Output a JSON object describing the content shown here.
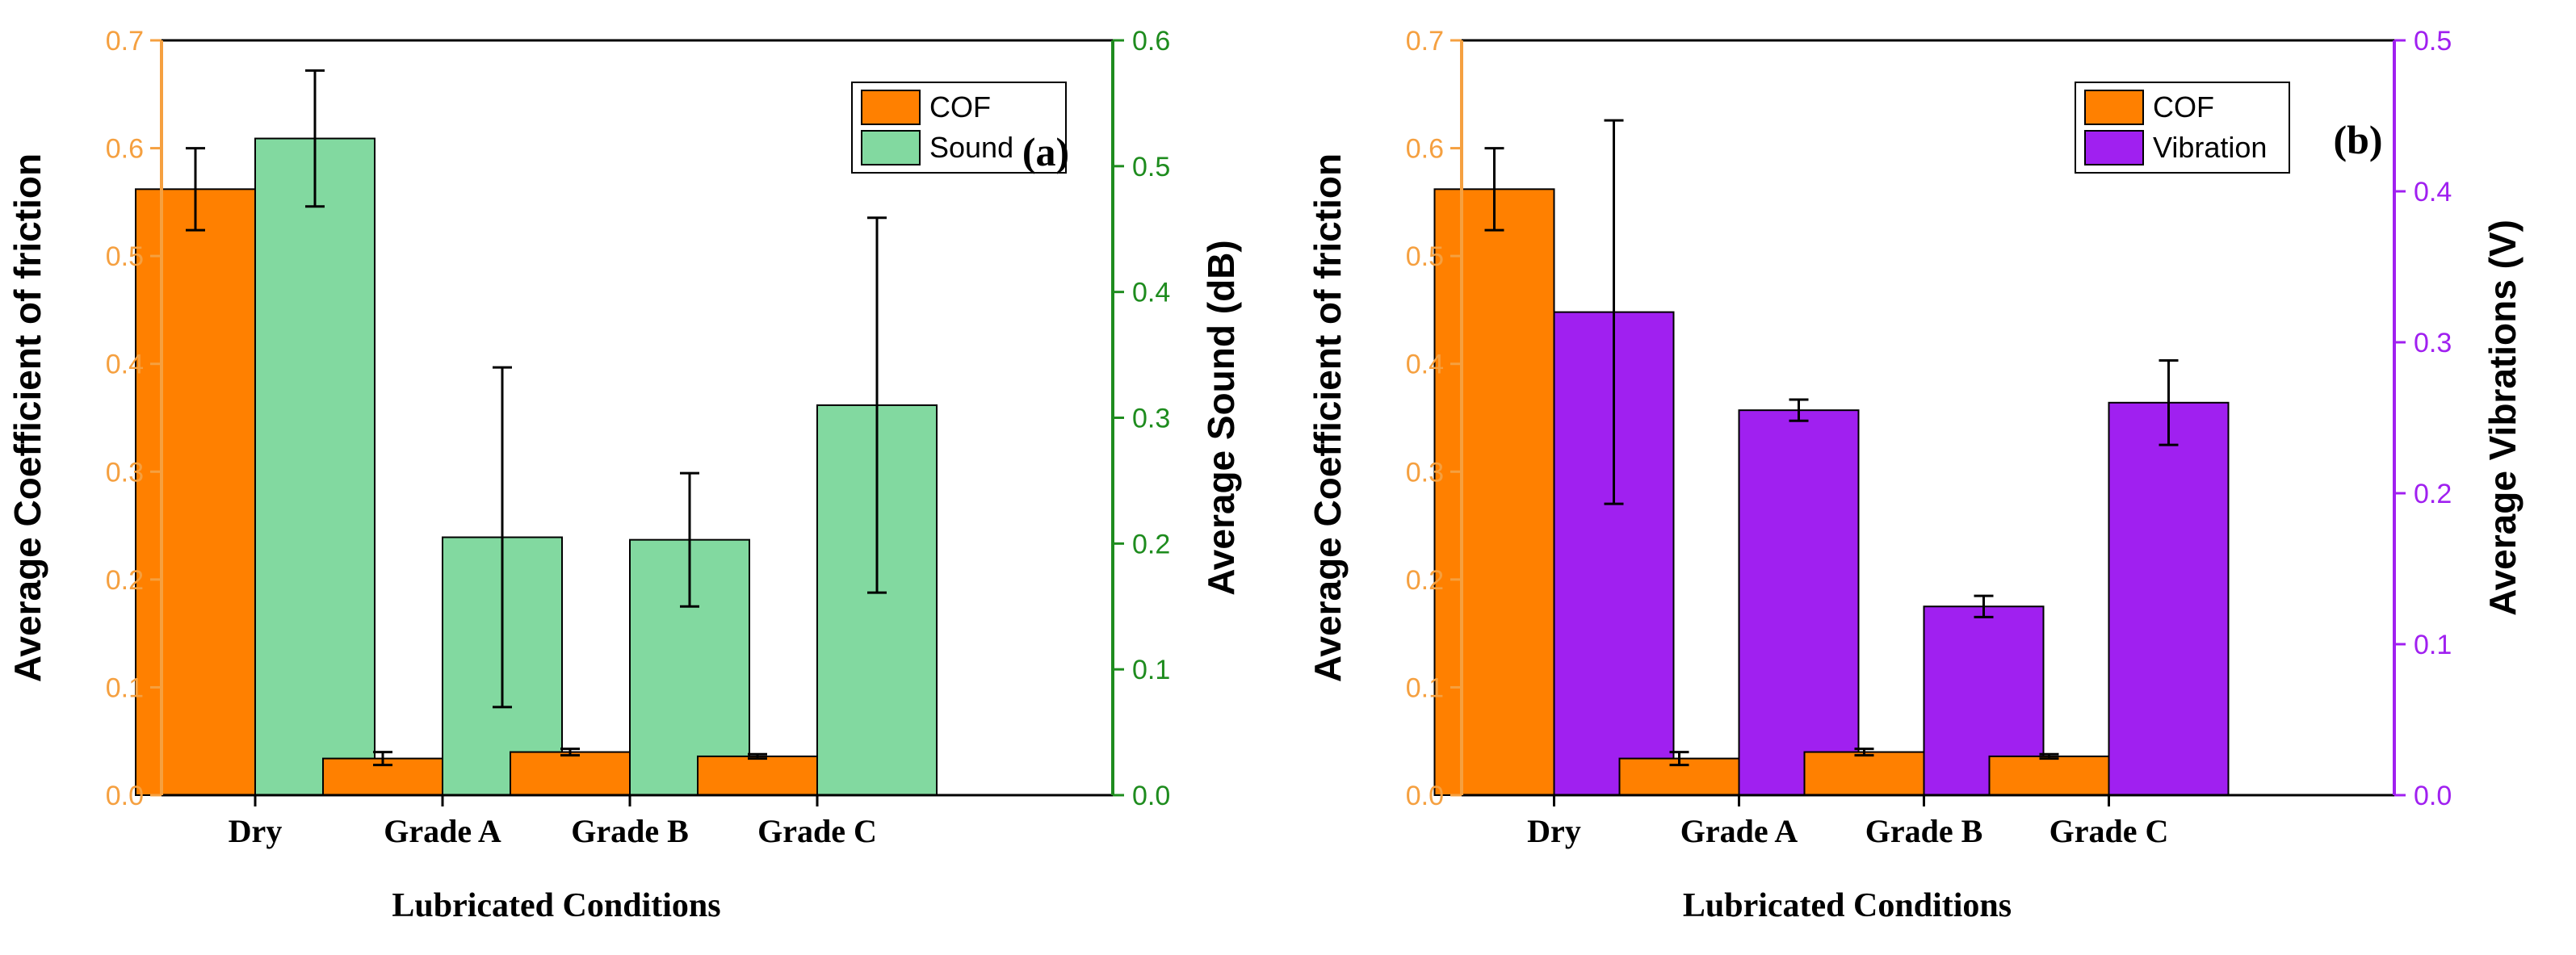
{
  "chart_data": [
    {
      "panel_label": "(a)",
      "type": "bar",
      "categories": [
        "Dry",
        "Grade A",
        "Grade B",
        "Grade C"
      ],
      "xlabel": "Lubricated Conditions",
      "left_axis": {
        "label": "Average Coefficient of friction",
        "ylim": [
          0,
          0.7
        ],
        "ticks": [
          "0.0",
          "0.1",
          "0.2",
          "0.3",
          "0.4",
          "0.5",
          "0.6",
          "0.7"
        ],
        "color": "#f5a040"
      },
      "right_axis": {
        "label": "Average Sound (dB)",
        "ylim": [
          0,
          0.6
        ],
        "ticks": [
          "0.0",
          "0.1",
          "0.2",
          "0.3",
          "0.4",
          "0.5",
          "0.6"
        ],
        "color": "#1e8c1e"
      },
      "series": [
        {
          "name": "COF",
          "axis": "left",
          "color": "#ff8000",
          "values": [
            0.562,
            0.034,
            0.04,
            0.036
          ],
          "errors": [
            0.038,
            0.006,
            0.003,
            0.002
          ]
        },
        {
          "name": "Sound",
          "axis": "right",
          "color": "#82d9a0",
          "values": [
            0.522,
            0.205,
            0.203,
            0.31
          ],
          "errors": [
            0.054,
            0.135,
            0.053,
            0.149
          ]
        }
      ],
      "legend": [
        "COF",
        "Sound"
      ],
      "legend_position": "top-right"
    },
    {
      "panel_label": "(b)",
      "type": "bar",
      "categories": [
        "Dry",
        "Grade A",
        "Grade B",
        "Grade C"
      ],
      "xlabel": "Lubricated Conditions",
      "left_axis": {
        "label": "Average Coefficient of friction",
        "ylim": [
          0,
          0.7
        ],
        "ticks": [
          "0.0",
          "0.1",
          "0.2",
          "0.3",
          "0.4",
          "0.5",
          "0.6",
          "0.7"
        ],
        "color": "#f5a040"
      },
      "right_axis": {
        "label": "Average Vibrations (V)",
        "ylim": [
          0,
          0.5
        ],
        "ticks": [
          "0.0",
          "0.1",
          "0.2",
          "0.3",
          "0.4",
          "0.5"
        ],
        "color": "#a020f0"
      },
      "series": [
        {
          "name": "COF",
          "axis": "left",
          "color": "#ff8000",
          "values": [
            0.562,
            0.034,
            0.04,
            0.036
          ],
          "errors": [
            0.038,
            0.006,
            0.003,
            0.002
          ]
        },
        {
          "name": "Vibration",
          "axis": "right",
          "color": "#a020f0",
          "values": [
            0.32,
            0.255,
            0.125,
            0.26
          ],
          "errors": [
            0.127,
            0.007,
            0.007,
            0.028
          ]
        }
      ],
      "legend": [
        "COF",
        "Vibration"
      ],
      "legend_position": "top-right"
    }
  ]
}
